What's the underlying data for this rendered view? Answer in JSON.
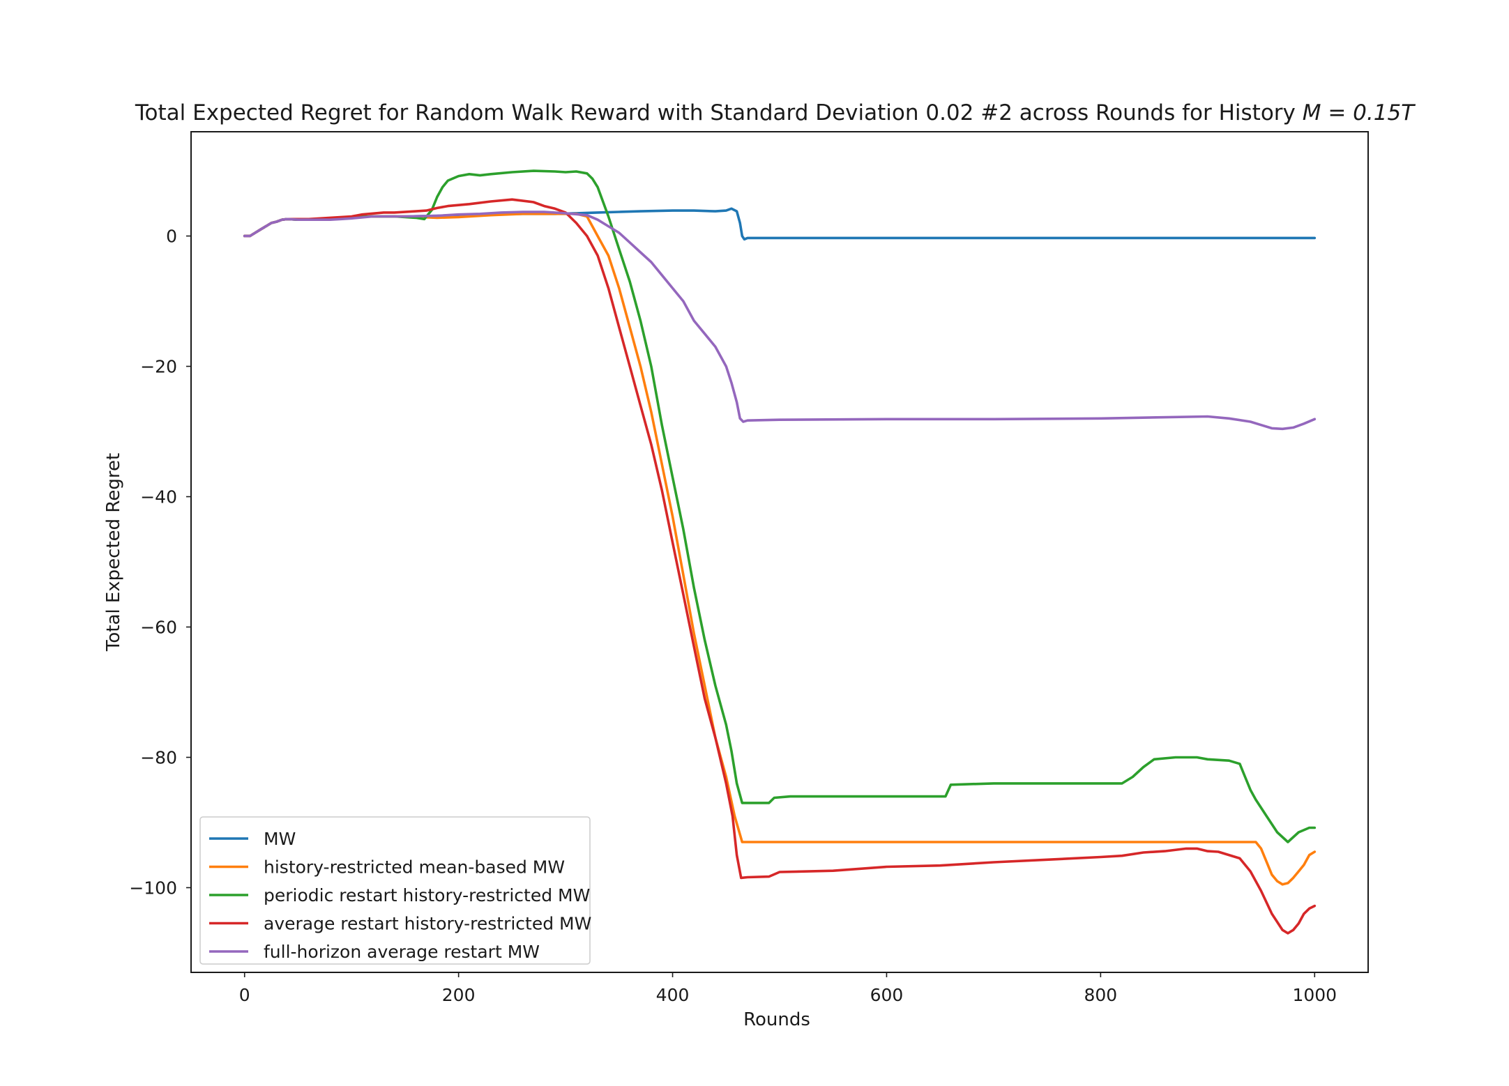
{
  "chart_data": {
    "type": "line",
    "title": "Total Expected Regret for Random Walk Reward with Standard Deviation 0.02 #2 across Rounds for History",
    "title_math": "M = 0.15T",
    "xlabel": "Rounds",
    "ylabel": "Total Expected Regret",
    "xlim": [
      -50,
      1050
    ],
    "ylim": [
      -113,
      16
    ],
    "xticks": [
      0,
      200,
      400,
      600,
      800,
      1000
    ],
    "xtick_labels": [
      "0",
      "200",
      "400",
      "600",
      "800",
      "1000"
    ],
    "yticks": [
      0,
      -20,
      -40,
      -60,
      -80,
      -100
    ],
    "ytick_labels": [
      "0",
      "−20",
      "−40",
      "−60",
      "−80",
      "−100"
    ],
    "grid": false,
    "legend_position": "lower-left",
    "series": [
      {
        "name": "MW",
        "color": "#1f77b4",
        "points": [
          [
            0,
            0
          ],
          [
            5,
            0
          ],
          [
            10,
            0.5
          ],
          [
            15,
            1
          ],
          [
            20,
            1.5
          ],
          [
            25,
            2
          ],
          [
            30,
            2.2
          ],
          [
            35,
            2.5
          ],
          [
            40,
            2.6
          ],
          [
            50,
            2.5
          ],
          [
            60,
            2.5
          ],
          [
            70,
            2.6
          ],
          [
            80,
            2.6
          ],
          [
            90,
            2.8
          ],
          [
            100,
            2.9
          ],
          [
            120,
            3
          ],
          [
            150,
            3
          ],
          [
            180,
            3.1
          ],
          [
            200,
            3.2
          ],
          [
            230,
            3.3
          ],
          [
            260,
            3.4
          ],
          [
            290,
            3.4
          ],
          [
            310,
            3.5
          ],
          [
            330,
            3.6
          ],
          [
            350,
            3.7
          ],
          [
            370,
            3.8
          ],
          [
            400,
            3.9
          ],
          [
            420,
            3.9
          ],
          [
            440,
            3.8
          ],
          [
            450,
            3.9
          ],
          [
            455,
            4.2
          ],
          [
            460,
            3.8
          ],
          [
            463,
            2
          ],
          [
            465,
            0
          ],
          [
            467,
            -0.5
          ],
          [
            470,
            -0.3
          ],
          [
            480,
            -0.3
          ],
          [
            600,
            -0.3
          ],
          [
            800,
            -0.3
          ],
          [
            1000,
            -0.3
          ]
        ]
      },
      {
        "name": "history-restricted mean-based MW",
        "color": "#ff7f0e",
        "points": [
          [
            0,
            0
          ],
          [
            5,
            0
          ],
          [
            10,
            0.5
          ],
          [
            15,
            1
          ],
          [
            20,
            1.5
          ],
          [
            25,
            2
          ],
          [
            30,
            2.2
          ],
          [
            35,
            2.5
          ],
          [
            40,
            2.6
          ],
          [
            50,
            2.5
          ],
          [
            60,
            2.5
          ],
          [
            70,
            2.6
          ],
          [
            80,
            2.6
          ],
          [
            90,
            2.8
          ],
          [
            100,
            2.9
          ],
          [
            120,
            3
          ],
          [
            150,
            3
          ],
          [
            180,
            2.8
          ],
          [
            200,
            2.9
          ],
          [
            230,
            3.2
          ],
          [
            260,
            3.4
          ],
          [
            290,
            3.4
          ],
          [
            310,
            3.4
          ],
          [
            320,
            3
          ],
          [
            330,
            0
          ],
          [
            340,
            -3
          ],
          [
            350,
            -8
          ],
          [
            360,
            -14
          ],
          [
            370,
            -20
          ],
          [
            380,
            -27
          ],
          [
            390,
            -35
          ],
          [
            400,
            -43
          ],
          [
            410,
            -52
          ],
          [
            420,
            -61
          ],
          [
            430,
            -69
          ],
          [
            440,
            -77
          ],
          [
            450,
            -83
          ],
          [
            458,
            -89
          ],
          [
            465,
            -93
          ],
          [
            470,
            -93
          ],
          [
            600,
            -93
          ],
          [
            800,
            -93
          ],
          [
            945,
            -93
          ],
          [
            950,
            -94
          ],
          [
            955,
            -96
          ],
          [
            960,
            -98
          ],
          [
            965,
            -99
          ],
          [
            970,
            -99.5
          ],
          [
            975,
            -99.3
          ],
          [
            980,
            -98.5
          ],
          [
            985,
            -97.5
          ],
          [
            990,
            -96.5
          ],
          [
            995,
            -95
          ],
          [
            1000,
            -94.5
          ]
        ]
      },
      {
        "name": "periodic restart history-restricted MW",
        "color": "#2ca02c",
        "points": [
          [
            0,
            0
          ],
          [
            5,
            0
          ],
          [
            10,
            0.5
          ],
          [
            15,
            1
          ],
          [
            20,
            1.5
          ],
          [
            25,
            2
          ],
          [
            30,
            2.2
          ],
          [
            35,
            2.5
          ],
          [
            40,
            2.6
          ],
          [
            50,
            2.5
          ],
          [
            60,
            2.5
          ],
          [
            70,
            2.6
          ],
          [
            80,
            2.6
          ],
          [
            90,
            2.8
          ],
          [
            100,
            2.9
          ],
          [
            120,
            3
          ],
          [
            140,
            3
          ],
          [
            160,
            2.8
          ],
          [
            168,
            2.6
          ],
          [
            175,
            4
          ],
          [
            180,
            6
          ],
          [
            185,
            7.5
          ],
          [
            190,
            8.5
          ],
          [
            200,
            9.2
          ],
          [
            210,
            9.5
          ],
          [
            220,
            9.3
          ],
          [
            230,
            9.5
          ],
          [
            250,
            9.8
          ],
          [
            270,
            10
          ],
          [
            290,
            9.9
          ],
          [
            300,
            9.8
          ],
          [
            310,
            9.9
          ],
          [
            320,
            9.6
          ],
          [
            325,
            8.8
          ],
          [
            330,
            7.5
          ],
          [
            340,
            3
          ],
          [
            350,
            -2
          ],
          [
            360,
            -7
          ],
          [
            370,
            -13
          ],
          [
            380,
            -20
          ],
          [
            390,
            -29
          ],
          [
            400,
            -37
          ],
          [
            410,
            -45
          ],
          [
            420,
            -54
          ],
          [
            430,
            -62
          ],
          [
            440,
            -69
          ],
          [
            450,
            -75
          ],
          [
            455,
            -79
          ],
          [
            460,
            -84
          ],
          [
            465,
            -87
          ],
          [
            470,
            -87
          ],
          [
            490,
            -87
          ],
          [
            495,
            -86.2
          ],
          [
            510,
            -86
          ],
          [
            600,
            -86
          ],
          [
            655,
            -86
          ],
          [
            660,
            -84.2
          ],
          [
            700,
            -84
          ],
          [
            820,
            -84
          ],
          [
            830,
            -83
          ],
          [
            840,
            -81.5
          ],
          [
            850,
            -80.3
          ],
          [
            870,
            -80
          ],
          [
            890,
            -80
          ],
          [
            900,
            -80.3
          ],
          [
            920,
            -80.5
          ],
          [
            930,
            -81
          ],
          [
            935,
            -83
          ],
          [
            940,
            -85
          ],
          [
            945,
            -86.5
          ],
          [
            955,
            -89
          ],
          [
            965,
            -91.5
          ],
          [
            975,
            -93
          ],
          [
            985,
            -91.5
          ],
          [
            995,
            -90.8
          ],
          [
            1000,
            -90.8
          ]
        ]
      },
      {
        "name": "average restart history-restricted MW",
        "color": "#d62728",
        "points": [
          [
            0,
            0
          ],
          [
            5,
            0
          ],
          [
            10,
            0.5
          ],
          [
            15,
            1
          ],
          [
            20,
            1.5
          ],
          [
            25,
            2
          ],
          [
            30,
            2.2
          ],
          [
            35,
            2.5
          ],
          [
            40,
            2.6
          ],
          [
            60,
            2.6
          ],
          [
            80,
            2.8
          ],
          [
            100,
            3
          ],
          [
            110,
            3.3
          ],
          [
            130,
            3.6
          ],
          [
            140,
            3.6
          ],
          [
            160,
            3.8
          ],
          [
            170,
            3.9
          ],
          [
            180,
            4.3
          ],
          [
            190,
            4.6
          ],
          [
            210,
            4.9
          ],
          [
            230,
            5.3
          ],
          [
            250,
            5.6
          ],
          [
            270,
            5.2
          ],
          [
            280,
            4.6
          ],
          [
            290,
            4.2
          ],
          [
            300,
            3.6
          ],
          [
            310,
            2
          ],
          [
            320,
            0
          ],
          [
            330,
            -3
          ],
          [
            340,
            -8
          ],
          [
            350,
            -14
          ],
          [
            360,
            -20
          ],
          [
            370,
            -26
          ],
          [
            380,
            -32
          ],
          [
            390,
            -39
          ],
          [
            400,
            -47
          ],
          [
            410,
            -55
          ],
          [
            420,
            -63
          ],
          [
            430,
            -71
          ],
          [
            440,
            -77
          ],
          [
            450,
            -84
          ],
          [
            456,
            -89
          ],
          [
            460,
            -95
          ],
          [
            464,
            -98.5
          ],
          [
            470,
            -98.4
          ],
          [
            490,
            -98.3
          ],
          [
            500,
            -97.6
          ],
          [
            550,
            -97.4
          ],
          [
            600,
            -96.8
          ],
          [
            650,
            -96.6
          ],
          [
            700,
            -96.1
          ],
          [
            750,
            -95.7
          ],
          [
            800,
            -95.3
          ],
          [
            820,
            -95.1
          ],
          [
            840,
            -94.6
          ],
          [
            860,
            -94.4
          ],
          [
            880,
            -94
          ],
          [
            890,
            -94
          ],
          [
            900,
            -94.4
          ],
          [
            910,
            -94.5
          ],
          [
            930,
            -95.5
          ],
          [
            940,
            -97.5
          ],
          [
            950,
            -100.5
          ],
          [
            960,
            -104
          ],
          [
            970,
            -106.5
          ],
          [
            975,
            -107
          ],
          [
            980,
            -106.5
          ],
          [
            985,
            -105.5
          ],
          [
            990,
            -104
          ],
          [
            995,
            -103.2
          ],
          [
            1000,
            -102.8
          ]
        ]
      },
      {
        "name": "full-horizon average restart MW",
        "color": "#9467bd",
        "points": [
          [
            0,
            0
          ],
          [
            5,
            0
          ],
          [
            10,
            0.5
          ],
          [
            15,
            1
          ],
          [
            20,
            1.5
          ],
          [
            25,
            2
          ],
          [
            30,
            2.2
          ],
          [
            35,
            2.5
          ],
          [
            40,
            2.6
          ],
          [
            50,
            2.5
          ],
          [
            60,
            2.5
          ],
          [
            70,
            2.5
          ],
          [
            80,
            2.5
          ],
          [
            90,
            2.6
          ],
          [
            100,
            2.7
          ],
          [
            120,
            3
          ],
          [
            150,
            3
          ],
          [
            180,
            3.1
          ],
          [
            200,
            3.3
          ],
          [
            220,
            3.4
          ],
          [
            240,
            3.6
          ],
          [
            260,
            3.7
          ],
          [
            280,
            3.7
          ],
          [
            300,
            3.5
          ],
          [
            320,
            3.2
          ],
          [
            330,
            2.5
          ],
          [
            340,
            1.5
          ],
          [
            350,
            0.5
          ],
          [
            360,
            -1
          ],
          [
            370,
            -2.5
          ],
          [
            380,
            -4
          ],
          [
            390,
            -6
          ],
          [
            400,
            -8
          ],
          [
            410,
            -10
          ],
          [
            420,
            -13
          ],
          [
            430,
            -15
          ],
          [
            440,
            -17
          ],
          [
            450,
            -20
          ],
          [
            455,
            -22.5
          ],
          [
            460,
            -25.5
          ],
          [
            463,
            -28
          ],
          [
            466,
            -28.5
          ],
          [
            470,
            -28.3
          ],
          [
            500,
            -28.2
          ],
          [
            600,
            -28.1
          ],
          [
            700,
            -28.1
          ],
          [
            800,
            -28
          ],
          [
            900,
            -27.7
          ],
          [
            920,
            -28
          ],
          [
            940,
            -28.5
          ],
          [
            950,
            -29
          ],
          [
            960,
            -29.5
          ],
          [
            970,
            -29.6
          ],
          [
            980,
            -29.4
          ],
          [
            990,
            -28.8
          ],
          [
            1000,
            -28.1
          ]
        ]
      }
    ]
  }
}
